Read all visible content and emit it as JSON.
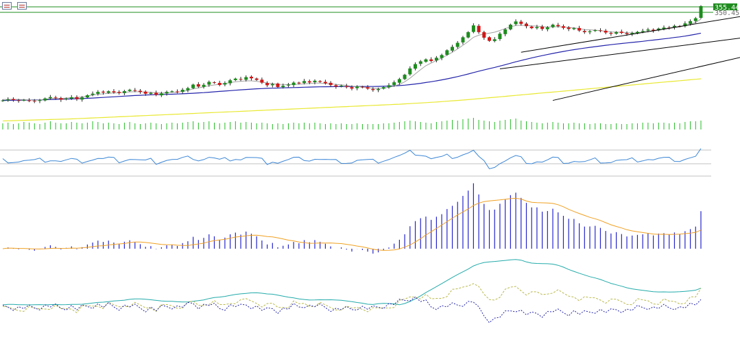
{
  "toolbar": {
    "icons": [
      "chart-list-icon",
      "chart-save-icon"
    ]
  },
  "price_scale": {
    "current_price_label": "355.44",
    "previous_close_label": "350.45",
    "current_price_color": "#1e8c1e",
    "previous_close_color": "#6d6d6d"
  },
  "chart_data": {
    "type": "candlestick",
    "title": "",
    "xlabel": "",
    "ylabel": "",
    "ylim": [
      220,
      358
    ],
    "grid": false,
    "colors": {
      "up": "#1e8c1e",
      "down": "#d01818",
      "ma_fast": "#a0a0a0",
      "ma_mid": "#2222aa",
      "ma_slow": "#e8e830",
      "trendline": "#000000",
      "volume": "#22bb22",
      "rsi": "#3b86d6",
      "macd_hist": "#2222cc",
      "macd_signal": "#f0a020",
      "adx": "#22aaaa",
      "plus_di": "#b8b84a",
      "minus_di": "#2222aa"
    },
    "closes": [
      236.0,
      237.2,
      236.5,
      235.8,
      236.6,
      235.5,
      234.8,
      236.2,
      238.5,
      240.2,
      239.0,
      236.8,
      238.5,
      240.0,
      237.6,
      239.8,
      242.5,
      244.6,
      246.8,
      246.0,
      247.6,
      246.2,
      245.5,
      247.8,
      249.5,
      248.2,
      246.6,
      244.5,
      245.5,
      243.0,
      244.8,
      246.8,
      247.5,
      246.6,
      249.5,
      251.5,
      256.0,
      253.5,
      255.8,
      259.5,
      258.2,
      255.6,
      258.0,
      261.5,
      263.6,
      262.2,
      265.5,
      264.0,
      262.0,
      258.5,
      255.2,
      256.8,
      253.0,
      254.6,
      256.0,
      258.5,
      257.5,
      260.5,
      258.8,
      261.0,
      259.5,
      257.8,
      255.5,
      253.5,
      254.8,
      252.8,
      251.0,
      253.6,
      252.5,
      251.0,
      249.2,
      250.5,
      252.8,
      255.2,
      259.0,
      263.0,
      268.5,
      276.5,
      282.0,
      285.5,
      288.0,
      286.0,
      290.0,
      293.5,
      299.5,
      303.8,
      309.0,
      316.0,
      322.5,
      331.0,
      322.5,
      315.5,
      311.5,
      313.5,
      320.5,
      326.0,
      332.0,
      336.0,
      333.0,
      330.0,
      327.5,
      329.0,
      326.5,
      328.5,
      332.0,
      330.0,
      328.0,
      326.5,
      327.5,
      324.5,
      322.5,
      323.5,
      325.0,
      324.0,
      322.0,
      320.5,
      322.5,
      321.5,
      320.0,
      321.5,
      322.8,
      324.0,
      325.8,
      324.5,
      327.0,
      328.2,
      328.0,
      330.5,
      329.8,
      333.5,
      336.5,
      340.0,
      355.44
    ],
    "ma_fast": [
      237.2,
      237.4,
      237.4,
      237.2,
      237.0,
      236.6,
      236.2,
      236.6,
      237.6,
      238.4,
      238.6,
      238.6,
      239.0,
      239.6,
      239.8,
      240.4,
      241.6,
      242.8,
      243.8,
      244.4,
      245.0,
      245.4,
      245.6,
      246.2,
      246.8,
      247.0,
      247.0,
      246.6,
      246.2,
      245.6,
      245.4,
      245.6,
      246.0,
      246.4,
      247.4,
      248.6,
      250.6,
      251.8,
      253.2,
      254.6,
      255.6,
      256.4,
      257.4,
      258.6,
      259.6,
      260.2,
      260.8,
      260.8,
      260.2,
      259.2,
      258.0,
      257.2,
      256.4,
      256.2,
      256.0,
      256.2,
      256.4,
      257.0,
      257.4,
      258.0,
      258.0,
      257.6,
      257.0,
      256.2,
      255.8,
      255.0,
      254.0,
      253.6,
      253.0,
      252.2,
      251.4,
      251.2,
      251.6,
      252.6,
      254.2,
      256.4,
      259.6,
      264.2,
      269.6,
      275.0,
      280.0,
      283.4,
      286.6,
      289.8,
      293.4,
      297.0,
      301.2,
      305.8,
      310.6,
      316.0,
      318.6,
      320.0,
      321.2,
      322.4,
      324.6,
      327.0,
      329.2,
      330.8,
      331.2,
      331.0,
      330.4,
      330.2,
      329.4,
      329.0,
      329.4,
      329.4,
      329.0,
      328.4,
      328.0,
      327.0,
      325.8,
      325.4,
      325.0,
      324.4,
      323.6,
      322.8,
      322.6,
      322.2,
      321.6,
      321.4,
      321.6,
      322.2,
      323.2,
      323.8,
      325.0,
      326.0,
      327.0,
      328.2,
      329.0,
      330.6,
      332.4,
      334.8,
      339.0
    ],
    "ma_mid": [
      236.0,
      236.1,
      236.2,
      236.3,
      236.4,
      236.5,
      236.6,
      236.7,
      236.9,
      237.1,
      237.3,
      237.5,
      237.7,
      237.9,
      238.1,
      238.4,
      238.7,
      239.0,
      239.4,
      239.8,
      240.2,
      240.6,
      241.0,
      241.4,
      241.8,
      242.2,
      242.5,
      242.8,
      243.1,
      243.3,
      243.5,
      243.7,
      243.9,
      244.1,
      244.4,
      244.7,
      245.1,
      245.5,
      245.9,
      246.4,
      246.9,
      247.4,
      247.9,
      248.4,
      248.9,
      249.4,
      249.9,
      250.3,
      250.7,
      251.0,
      251.3,
      251.5,
      251.7,
      251.9,
      252.1,
      252.3,
      252.5,
      252.7,
      252.9,
      253.1,
      253.2,
      253.3,
      253.4,
      253.5,
      253.6,
      253.6,
      253.6,
      253.7,
      253.7,
      253.7,
      253.7,
      253.8,
      253.9,
      254.1,
      254.4,
      254.8,
      255.3,
      256.0,
      256.8,
      257.7,
      258.7,
      259.7,
      260.8,
      262.0,
      263.3,
      264.7,
      266.2,
      267.8,
      269.5,
      271.3,
      273.0,
      274.6,
      276.2,
      277.8,
      279.5,
      281.3,
      283.1,
      284.9,
      286.6,
      288.2,
      289.8,
      291.3,
      292.7,
      294.1,
      295.5,
      296.8,
      298.0,
      299.2,
      300.3,
      301.3,
      302.3,
      303.2,
      304.1,
      305.0,
      305.8,
      306.6,
      307.4,
      308.1,
      308.8,
      309.5,
      310.2,
      310.9,
      311.7,
      312.4,
      313.2,
      314.0,
      314.8,
      315.7,
      316.5,
      317.5,
      318.6,
      319.8,
      321.2
    ],
    "ma_slow": [
      210.0,
      210.2,
      210.4,
      210.6,
      210.8,
      211.0,
      211.2,
      211.4,
      211.6,
      211.8,
      212.0,
      212.2,
      212.4,
      212.6,
      212.9,
      213.2,
      213.5,
      213.8,
      214.1,
      214.4,
      214.7,
      215.0,
      215.3,
      215.6,
      215.9,
      216.2,
      216.5,
      216.8,
      217.1,
      217.4,
      217.7,
      218.0,
      218.3,
      218.6,
      218.9,
      219.2,
      219.5,
      219.8,
      220.1,
      220.4,
      220.7,
      221.0,
      221.3,
      221.6,
      221.9,
      222.2,
      222.5,
      222.8,
      223.1,
      223.4,
      223.7,
      224.0,
      224.3,
      224.6,
      224.9,
      225.2,
      225.5,
      225.8,
      226.1,
      226.4,
      226.7,
      227.0,
      227.3,
      227.6,
      227.9,
      228.2,
      228.5,
      228.8,
      229.1,
      229.4,
      229.7,
      230.0,
      230.3,
      230.6,
      230.9,
      231.2,
      231.6,
      232.0,
      232.4,
      232.8,
      233.2,
      233.6,
      234.0,
      234.5,
      235.0,
      235.5,
      236.0,
      236.5,
      237.0,
      237.6,
      238.2,
      238.8,
      239.4,
      240.0,
      240.6,
      241.2,
      241.8,
      242.4,
      243.0,
      243.6,
      244.2,
      244.8,
      245.4,
      246.0,
      246.6,
      247.2,
      247.8,
      248.4,
      249.0,
      249.6,
      250.2,
      250.8,
      251.4,
      252.0,
      252.6,
      253.2,
      253.8,
      254.4,
      255.0,
      255.6,
      256.2,
      256.8,
      257.4,
      258.0,
      258.6,
      259.2,
      259.8,
      260.4,
      261.0,
      261.6,
      262.2,
      262.8,
      263.4
    ],
    "volume": [
      9,
      10,
      8,
      9,
      11,
      10,
      9,
      8,
      10,
      12,
      10,
      9,
      9,
      11,
      10,
      9,
      10,
      12,
      11,
      9,
      10,
      9,
      8,
      10,
      11,
      9,
      8,
      9,
      10,
      9,
      8,
      9,
      10,
      9,
      10,
      11,
      12,
      10,
      11,
      12,
      10,
      9,
      10,
      11,
      12,
      10,
      11,
      10,
      9,
      10,
      9,
      8,
      9,
      8,
      9,
      10,
      9,
      10,
      9,
      10,
      9,
      8,
      9,
      8,
      9,
      8,
      8,
      9,
      8,
      8,
      8,
      8,
      9,
      9,
      10,
      11,
      12,
      13,
      12,
      11,
      10,
      9,
      11,
      12,
      13,
      14,
      13,
      15,
      16,
      17,
      14,
      13,
      12,
      11,
      13,
      14,
      15,
      16,
      13,
      12,
      11,
      10,
      9,
      10,
      11,
      10,
      9,
      9,
      10,
      9,
      9,
      8,
      9,
      9,
      8,
      8,
      9,
      8,
      8,
      9,
      9,
      10,
      10,
      9,
      10,
      10,
      9,
      10,
      9,
      11,
      12,
      12,
      13
    ],
    "trendlines": [
      {
        "from": [
          98,
          297
        ],
        "to": [
          153,
          357
        ]
      },
      {
        "from": [
          104,
          236
        ],
        "to": [
          156,
          316
        ]
      },
      {
        "from": [
          94,
          276
        ],
        "to": [
          150,
          324
        ]
      }
    ]
  }
}
